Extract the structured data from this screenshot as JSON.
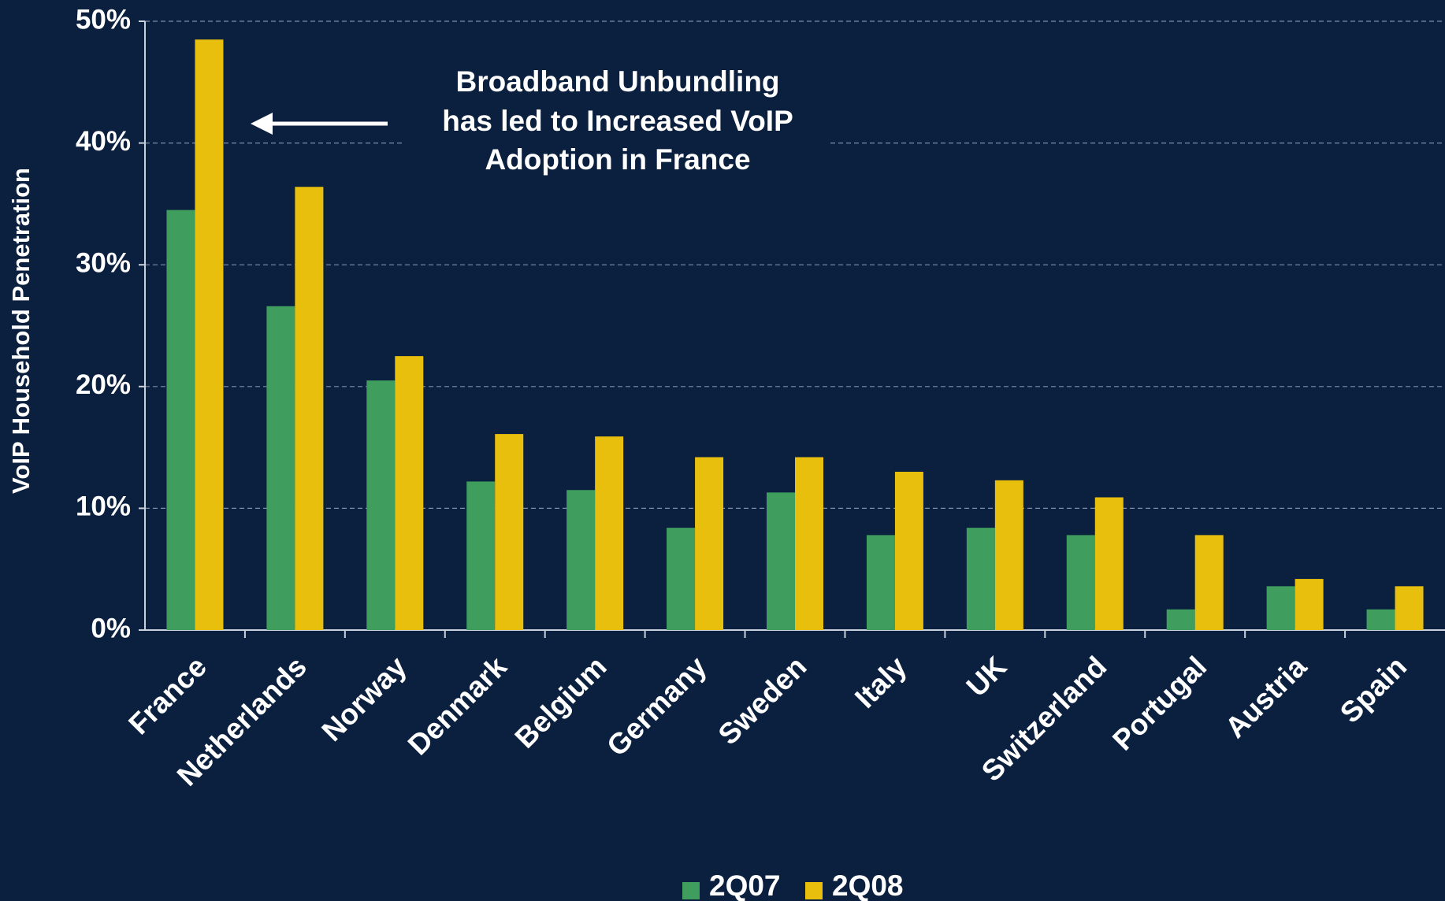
{
  "chart_data": {
    "type": "bar",
    "y_axis_label": "VoIP Household Penetration",
    "annotation": [
      "Broadband Unbundling",
      "has led to Increased VoIP",
      "Adoption in France"
    ],
    "categories": [
      "France",
      "Netherlands",
      "Norway",
      "Denmark",
      "Belgium",
      "Germany",
      "Sweden",
      "Italy",
      "UK",
      "Switzerland",
      "Portugal",
      "Austria",
      "Spain"
    ],
    "series": [
      {
        "name": "2Q07",
        "color": "#3f9e5e",
        "values": [
          34.5,
          26.6,
          20.5,
          12.2,
          11.5,
          8.4,
          11.3,
          7.8,
          8.4,
          7.8,
          1.7,
          3.6,
          1.7
        ]
      },
      {
        "name": "2Q08",
        "color": "#e8bf0c",
        "values": [
          48.5,
          36.4,
          22.5,
          16.1,
          15.9,
          14.2,
          14.2,
          13.0,
          12.3,
          10.9,
          7.8,
          4.2,
          3.6
        ]
      }
    ],
    "ylim": [
      0,
      50
    ],
    "yticks": [
      {
        "value": 0,
        "label": "0%"
      },
      {
        "value": 10,
        "label": "10%"
      },
      {
        "value": 20,
        "label": "20%"
      },
      {
        "value": 30,
        "label": "30%"
      },
      {
        "value": 40,
        "label": "40%"
      },
      {
        "value": 50,
        "label": "50%"
      }
    ],
    "grid": true
  }
}
